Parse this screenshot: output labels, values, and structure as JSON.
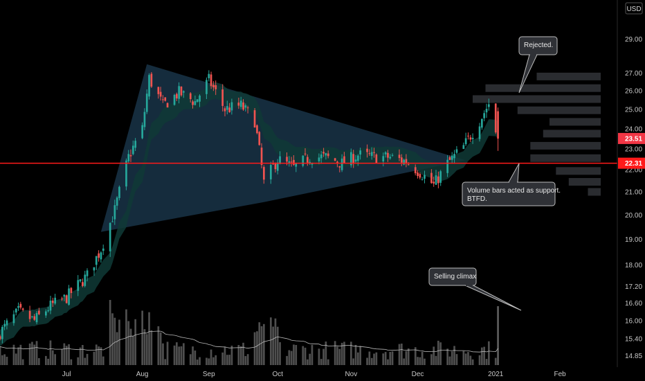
{
  "chart_data": {
    "type": "candlestick",
    "currency": "USD",
    "y_axis": {
      "scale": "log",
      "ticks": [
        14.85,
        15.4,
        16.0,
        16.6,
        17.2,
        18.0,
        19.0,
        20.0,
        21.0,
        22.0,
        23.0,
        24.0,
        25.0,
        26.0,
        27.0,
        29.0
      ],
      "tick_labels": [
        "14.85",
        "15.40",
        "16.00",
        "16.60",
        "17.20",
        "18.00",
        "19.00",
        "20.00",
        "21.00",
        "22.00",
        "23.00",
        "24.00",
        "25.00",
        "26.00",
        "27.00",
        "29.00"
      ],
      "ylim": [
        14.5,
        31.5
      ]
    },
    "x_axis": {
      "tick_labels": [
        "Jul",
        "Aug",
        "Sep",
        "Oct",
        "Nov",
        "Dec",
        "2021",
        "Feb"
      ],
      "tick_dates": [
        "2020-07-01",
        "2020-08-03",
        "2020-09-01",
        "2020-10-01",
        "2020-11-02",
        "2020-12-01",
        "2021-01-04",
        "2021-02-01"
      ],
      "range": [
        "2020-06-02",
        "2021-02-26"
      ]
    },
    "current_price": {
      "value": 23.51,
      "label": "23.51",
      "color": "#f23645"
    },
    "support_level": {
      "value": 22.31,
      "label": "22.31",
      "color": "#ff1a1a"
    },
    "triangle": [
      {
        "date": "2020-07-16",
        "price": 19.3
      },
      {
        "date": "2020-08-05",
        "price": 27.5
      },
      {
        "date": "2020-12-22",
        "price": 22.45
      },
      {
        "date": "2020-09-25",
        "price": 20.55
      }
    ],
    "volume_profile_price_levels": [
      {
        "price": 26.8,
        "width": 0.5
      },
      {
        "price": 26.15,
        "width": 0.9
      },
      {
        "price": 25.55,
        "width": 1.0
      },
      {
        "price": 24.95,
        "width": 0.65
      },
      {
        "price": 24.35,
        "width": 0.4
      },
      {
        "price": 23.75,
        "width": 0.45
      },
      {
        "price": 23.15,
        "width": 0.55
      },
      {
        "price": 22.55,
        "width": 0.55
      },
      {
        "price": 21.95,
        "width": 0.35
      },
      {
        "price": 21.45,
        "width": 0.25
      },
      {
        "price": 21.0,
        "width": 0.1
      }
    ],
    "annotations": [
      {
        "id": "rejected",
        "text": "Rejected.",
        "date": "2020-12-31",
        "price": 26.1
      },
      {
        "id": "support",
        "text": "Volume bars acted as support. BTFD.",
        "date": "2020-12-30",
        "price": 22.3
      },
      {
        "id": "climax",
        "text": "Selling climax",
        "date": "2021-01-05",
        "price": 16.0
      }
    ],
    "colors": {
      "up": "#26a69a",
      "down": "#ef5350",
      "volume": "#5d5d5d",
      "triangle_fill": "#1c3b52",
      "ema": "#0f3a36",
      "profile": "#2a2c30"
    }
  }
}
